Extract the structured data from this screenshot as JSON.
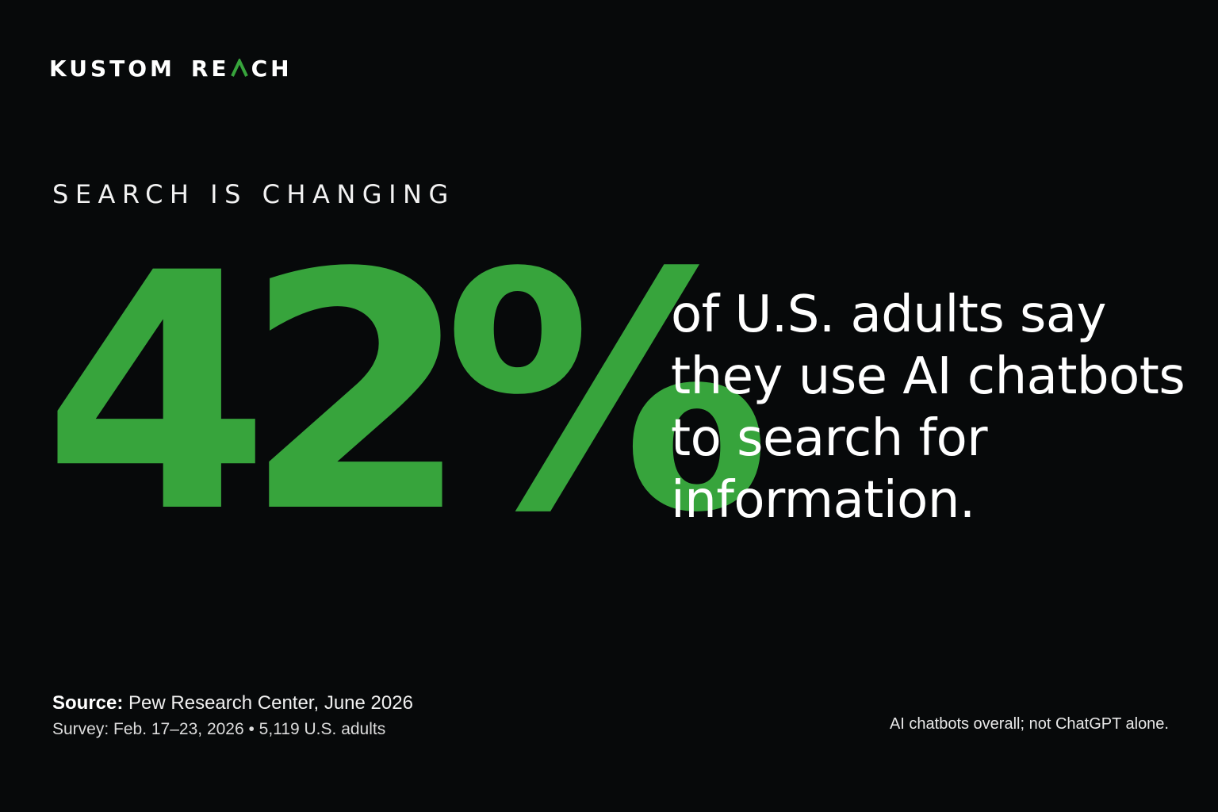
{
  "brand": {
    "prefix": "KUSTOM",
    "name_start": "RE",
    "name_end": "CH",
    "name_full": "KUSTOM REACH",
    "logo_mark_icon": "green-chevron-a-icon",
    "accent_color": "#37a43c"
  },
  "eyebrow": "SEARCH IS CHANGING",
  "stat": {
    "value": "42%"
  },
  "headline": {
    "lines": [
      "of U.S. adults say",
      "they use AI chatbots",
      "to search for",
      "information."
    ]
  },
  "footer": {
    "source_label": "Source:",
    "source_text": " Pew Research Center, June 2026",
    "survey_text": "Survey: Feb. 17–23, 2026 • 5,119 U.S. adults",
    "note": "AI chatbots overall; not ChatGPT alone."
  },
  "colors": {
    "background": "#07090a",
    "text": "#ffffff",
    "accent": "#37a43c"
  }
}
